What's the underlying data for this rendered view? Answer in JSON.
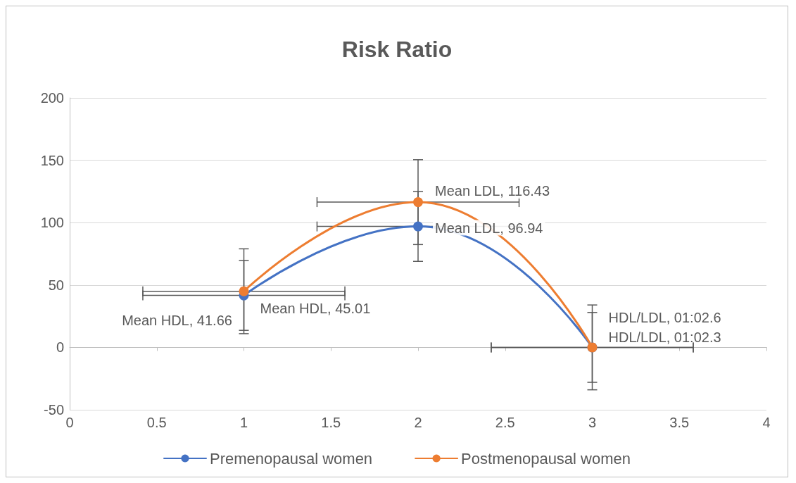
{
  "chart_data": {
    "type": "line",
    "title": "Risk Ratio",
    "x": [
      1,
      2,
      3
    ],
    "series": [
      {
        "name": "Premenopausal women",
        "color": "#4472c4",
        "values": [
          41.66,
          96.94,
          0
        ],
        "errors": [
          28,
          28,
          28
        ],
        "xerrors": [
          0.58,
          0.58,
          0.58
        ],
        "value_labels": [
          "Mean HDL, 41.66",
          "Mean LDL, 96.94",
          "HDL/LDL, 01:02.3"
        ]
      },
      {
        "name": "Postmenopausal women",
        "color": "#ed7d31",
        "values": [
          45.01,
          116.43,
          0
        ],
        "errors": [
          34,
          34,
          34
        ],
        "xerrors": [
          0.58,
          0.58,
          0.58
        ],
        "value_labels": [
          "Mean HDL, 45.01",
          "Mean LDL, 116.43",
          "HDL/LDL, 01:02.6"
        ]
      }
    ],
    "xlim": [
      0,
      4
    ],
    "xticks": [
      0,
      0.5,
      1,
      1.5,
      2,
      2.5,
      3,
      3.5,
      4
    ],
    "ylim": [
      -50,
      200
    ],
    "yticks": [
      -50,
      0,
      50,
      100,
      150,
      200
    ],
    "grid": "y",
    "legend": "bottom",
    "marker": "circle",
    "line_style": "solid"
  }
}
